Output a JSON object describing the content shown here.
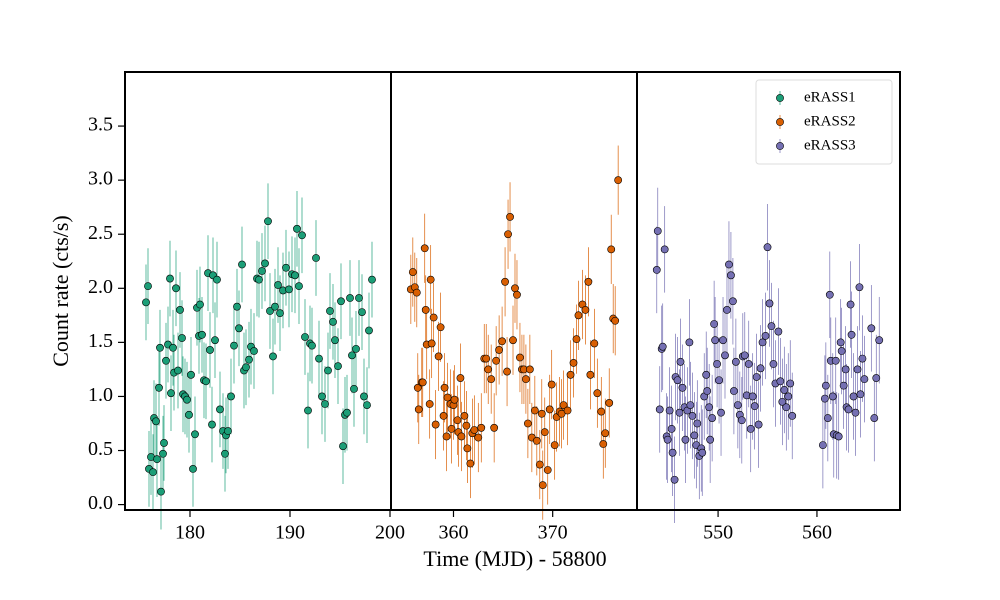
{
  "chart_data": [
    {
      "type": "scatter",
      "ylabel": "Count rate (cts/s)",
      "xlim": [
        173.5,
        200.1
      ],
      "ylim": [
        -0.05,
        4.0
      ],
      "xticks": [
        180,
        190,
        200
      ],
      "yticks": [
        {
          "value": 0,
          "label": "0.0"
        },
        0.5,
        {
          "value": 1,
          "label": "1.0"
        },
        1.5,
        {
          "value": 2,
          "label": "2.0"
        },
        2.5,
        {
          "value": 3,
          "label": "3.0"
        },
        3.5
      ],
      "series": [
        {
          "name": "eRASS1",
          "color": "#1b9e77",
          "yerr": 0.35,
          "x": [
            175.6,
            175.8,
            175.9,
            176.1,
            176.3,
            176.4,
            176.6,
            176.7,
            176.9,
            177.0,
            177.1,
            177.3,
            177.4,
            177.6,
            177.8,
            178.0,
            178.1,
            178.3,
            178.4,
            178.6,
            178.8,
            179.0,
            179.2,
            179.3,
            179.5,
            179.7,
            179.9,
            180.1,
            180.3,
            180.5,
            180.7,
            180.9,
            181.0,
            181.2,
            181.4,
            181.6,
            181.8,
            182.0,
            182.2,
            182.3,
            182.5,
            182.7,
            183.0,
            183.3,
            183.5,
            183.6,
            183.8,
            184.1,
            184.4,
            184.7,
            184.9,
            185.2,
            185.4,
            185.6,
            185.9,
            186.1,
            186.4,
            186.7,
            186.9,
            187.2,
            187.5,
            187.8,
            188.0,
            188.3,
            188.5,
            188.8,
            189.0,
            189.3,
            189.6,
            189.9,
            190.2,
            190.5,
            190.7,
            190.9,
            191.2,
            191.5,
            191.8,
            192.0,
            192.2,
            192.6,
            192.9,
            193.2,
            193.5,
            193.8,
            194.0,
            194.3,
            194.5,
            194.8,
            195.1,
            195.3,
            195.5,
            195.7,
            196.0,
            196.2,
            196.4,
            196.6,
            196.9,
            197.2,
            197.4,
            197.7,
            197.9,
            198.2
          ],
          "values": [
            1.87,
            2.02,
            0.33,
            0.44,
            0.3,
            0.8,
            0.77,
            0.42,
            1.08,
            1.45,
            0.12,
            0.47,
            0.57,
            1.33,
            1.48,
            2.09,
            1.03,
            1.45,
            1.22,
            2.0,
            1.24,
            1.8,
            1.54,
            1.02,
            1.0,
            0.97,
            0.83,
            1.2,
            0.33,
            0.65,
            1.82,
            1.56,
            1.85,
            1.57,
            1.15,
            1.14,
            2.14,
            1.43,
            0.74,
            2.12,
            1.52,
            2.08,
            0.88,
            0.68,
            0.47,
            0.64,
            0.68,
            1.0,
            1.47,
            1.83,
            1.63,
            2.22,
            1.24,
            1.27,
            1.34,
            1.46,
            1.42,
            2.09,
            2.08,
            2.16,
            2.23,
            2.62,
            1.79,
            1.37,
            1.83,
            2.03,
            1.77,
            1.98,
            2.19,
            1.99,
            2.13,
            2.12,
            2.55,
            2.02,
            2.49,
            1.55,
            0.87,
            1.49,
            1.47,
            2.28,
            1.35,
            1.0,
            0.93,
            1.24,
            1.79,
            1.69,
            1.52,
            1.28,
            1.88,
            0.54,
            0.83,
            0.85,
            1.91,
            1.38,
            1.07,
            1.44,
            1.91,
            1.78,
            1.0,
            0.92,
            1.61,
            2.08
          ]
        }
      ]
    },
    {
      "type": "scatter",
      "xlabel": "Time (MJD) - 58800",
      "xlim": [
        353.7,
        378.5
      ],
      "ylim": [
        -0.05,
        4.0
      ],
      "xticks": [
        360,
        370
      ],
      "series": [
        {
          "name": "eRASS2",
          "color": "#d95f02",
          "yerr": 0.32,
          "x": [
            355.7,
            355.9,
            356.1,
            356.3,
            356.4,
            356.5,
            356.8,
            356.9,
            357.1,
            357.2,
            357.3,
            357.6,
            357.7,
            357.8,
            358.0,
            358.2,
            358.5,
            358.7,
            359.0,
            359.1,
            359.3,
            359.4,
            359.7,
            359.8,
            360.0,
            360.1,
            360.4,
            360.5,
            360.7,
            360.8,
            361.1,
            361.3,
            361.4,
            361.7,
            361.9,
            362.1,
            362.5,
            362.8,
            363.1,
            363.3,
            363.5,
            363.8,
            364.1,
            364.3,
            364.6,
            364.9,
            365.2,
            365.4,
            365.5,
            365.7,
            366.0,
            366.2,
            366.4,
            366.7,
            366.9,
            367.1,
            367.3,
            367.5,
            367.7,
            367.9,
            368.2,
            368.4,
            368.7,
            368.9,
            369.0,
            369.2,
            369.5,
            369.7,
            369.9,
            370.2,
            370.4,
            370.7,
            370.9,
            371.1,
            371.5,
            371.8,
            372.1,
            372.4,
            372.6,
            373.0,
            373.3,
            373.6,
            373.8,
            374.2,
            374.5,
            374.9,
            375.1,
            375.3,
            375.7,
            375.9,
            376.1,
            376.3,
            376.6
          ],
          "values": [
            1.99,
            2.15,
            2.01,
            1.96,
            1.08,
            0.88,
            1.13,
            1.13,
            2.37,
            1.8,
            1.48,
            0.93,
            2.08,
            1.49,
            1.73,
            0.74,
            1.37,
            1.64,
            0.82,
            1.08,
            0.63,
            0.99,
            0.93,
            0.7,
            0.92,
            0.97,
            0.78,
            0.67,
            1.17,
            0.63,
            0.82,
            0.73,
            0.52,
            0.38,
            0.66,
            0.69,
            0.62,
            0.71,
            1.35,
            1.35,
            1.25,
            1.16,
            0.71,
            1.33,
            1.43,
            1.51,
            2.06,
            1.23,
            2.5,
            2.66,
            1.52,
            2.0,
            1.94,
            1.36,
            1.25,
            1.25,
            1.16,
            0.75,
            1.25,
            0.62,
            0.87,
            0.59,
            0.37,
            0.84,
            0.18,
            0.67,
            0.32,
            0.88,
            1.11,
            0.55,
            0.81,
            0.86,
            0.84,
            0.92,
            0.87,
            1.2,
            1.31,
            1.53,
            1.75,
            1.85,
            1.8,
            2.06,
            1.2,
            1.49,
            1.03,
            0.86,
            0.56,
            0.66,
            0.94,
            2.36,
            1.72,
            1.7,
            3.0
          ]
        }
      ]
    },
    {
      "type": "scatter",
      "legend": "upper right",
      "xlim": [
        541.8,
        568.4
      ],
      "ylim": [
        -0.05,
        4.0
      ],
      "xticks": [
        550,
        560
      ],
      "series": [
        {
          "name": "eRASS3",
          "color": "#7570b3",
          "yerr": 0.4,
          "x": [
            543.8,
            543.9,
            544.1,
            544.3,
            544.4,
            544.6,
            544.8,
            544.9,
            545.1,
            545.3,
            545.4,
            545.6,
            545.7,
            545.9,
            546.1,
            546.2,
            546.4,
            546.6,
            546.7,
            546.9,
            547.1,
            547.2,
            547.4,
            547.6,
            547.8,
            547.9,
            548.1,
            548.3,
            548.4,
            548.6,
            548.8,
            548.9,
            549.1,
            549.2,
            549.4,
            549.6,
            549.7,
            549.9,
            550.1,
            550.3,
            550.5,
            550.7,
            550.9,
            551.1,
            551.3,
            551.5,
            551.6,
            551.8,
            552.0,
            552.2,
            552.4,
            552.5,
            552.7,
            552.9,
            553.1,
            553.3,
            553.5,
            553.7,
            553.9,
            554.1,
            554.3,
            554.5,
            554.8,
            555.0,
            555.2,
            555.4,
            555.6,
            555.8,
            556.1,
            556.3,
            556.5,
            556.7,
            556.9,
            557.1,
            557.3,
            557.5,
            560.6,
            560.8,
            560.9,
            561.1,
            561.3,
            561.4,
            561.6,
            561.7,
            561.9,
            562.0,
            562.2,
            562.4,
            562.5,
            562.7,
            562.9,
            563.0,
            563.2,
            563.4,
            563.5,
            563.7,
            563.9,
            564.1,
            564.3,
            564.4,
            564.6,
            564.8,
            565.5,
            565.8,
            566.0,
            566.3
          ],
          "values": [
            2.17,
            2.53,
            0.88,
            1.44,
            1.46,
            2.36,
            0.63,
            0.6,
            0.87,
            0.7,
            0.48,
            0.23,
            1.18,
            1.15,
            0.85,
            1.32,
            1.08,
            0.9,
            0.6,
            0.87,
            1.5,
            0.92,
            0.82,
            0.64,
            0.55,
            0.75,
            0.45,
            0.52,
            0.48,
            1.0,
            1.2,
            1.05,
            0.9,
            0.6,
            0.8,
            1.67,
            1.52,
            1.3,
            1.15,
            0.85,
            1.52,
            1.38,
            1.8,
            2.22,
            2.12,
            1.88,
            1.05,
            1.32,
            0.92,
            0.83,
            0.78,
            1.37,
            1.38,
            1.01,
            1.3,
            0.7,
            1.0,
            0.91,
            1.18,
            0.74,
            1.26,
            1.5,
            1.56,
            2.38,
            1.86,
            1.65,
            1.3,
            1.12,
            1.6,
            1.14,
            0.95,
            1.06,
            0.9,
            1.0,
            1.12,
            0.82,
            0.55,
            0.98,
            1.1,
            0.8,
            1.94,
            1.33,
            1.0,
            0.65,
            1.33,
            0.64,
            0.63,
            1.5,
            1.42,
            1.1,
            1.25,
            0.9,
            0.88,
            1.85,
            1.57,
            1.0,
            0.85,
            1.25,
            2.01,
            1.02,
            1.35,
            1.16,
            1.63,
            0.8,
            1.17,
            1.52
          ]
        }
      ]
    }
  ]
}
